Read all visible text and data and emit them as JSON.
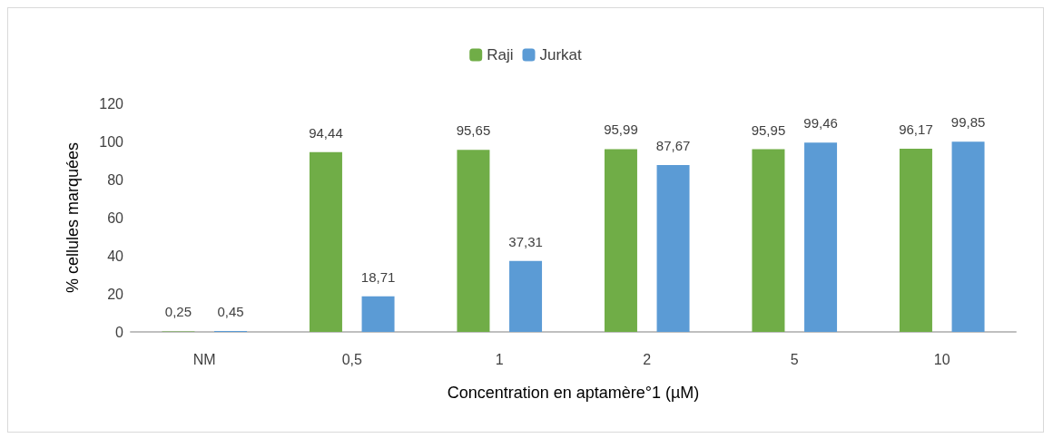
{
  "chart_data": {
    "type": "bar",
    "xlabel": "Concentration en aptamère°1 (µM)",
    "ylabel": "% cellules marquées",
    "categories": [
      "NM",
      "0,5",
      "1",
      "2",
      "5",
      "10"
    ],
    "series": [
      {
        "name": "Raji",
        "color": "#70ad47",
        "values": [
          0.25,
          94.44,
          95.65,
          95.99,
          95.95,
          96.17
        ],
        "value_labels": [
          "0,25",
          "94,44",
          "95,65",
          "95,99",
          "95,95",
          "96,17"
        ]
      },
      {
        "name": "Jurkat",
        "color": "#5b9bd5",
        "values": [
          0.45,
          18.71,
          37.31,
          87.67,
          99.46,
          99.85
        ],
        "value_labels": [
          "0,45",
          "18,71",
          "37,31",
          "87,67",
          "99,46",
          "99,85"
        ]
      }
    ],
    "ylim": [
      0,
      120
    ],
    "yticks": [
      0,
      20,
      40,
      60,
      80,
      100,
      120
    ],
    "grid": false,
    "legend": "top"
  }
}
